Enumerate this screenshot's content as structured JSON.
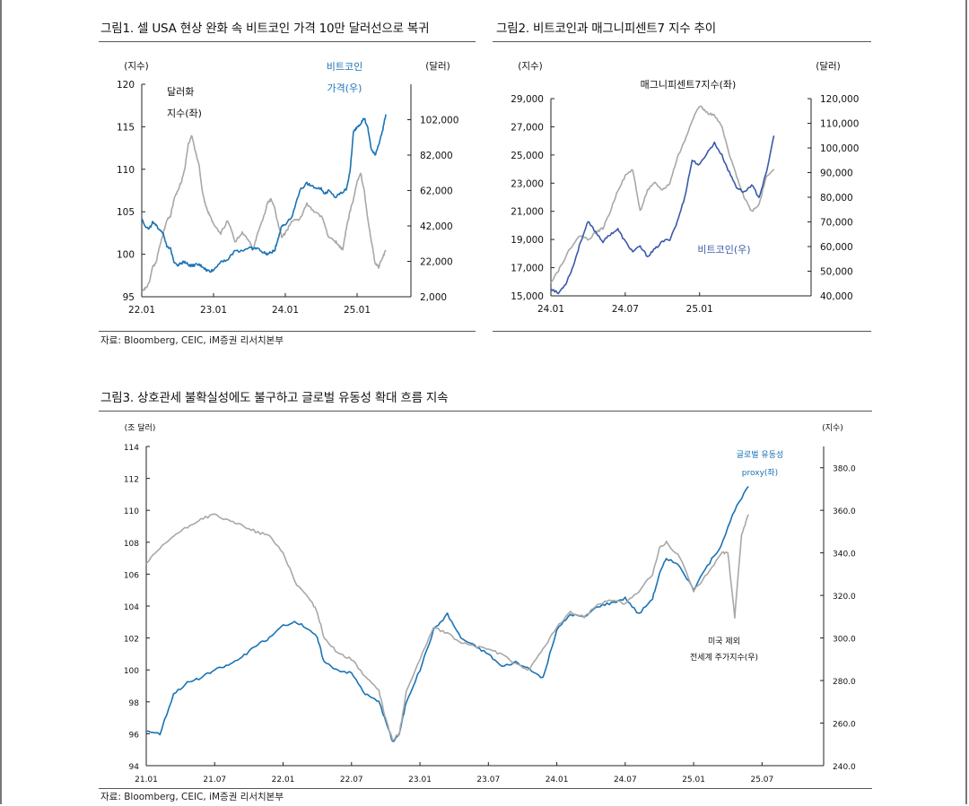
{
  "figures": {
    "fig1": {
      "title": "그림1.  셀 USA 현상 완화 속 비트코인 가격 10만 달러선으로 복귀",
      "source": "자료: Bloomberg, CEIC, iM증권 리서치본부"
    },
    "fig2": {
      "title": "그림2.  비트코인과 매그니피센트7 지수 추이"
    },
    "fig3": {
      "title": "그림3.  상호관세 불확실성에도 불구하고 글로벌 유동성 확대 흐름 지속",
      "source": "자료: Bloomberg, CEIC, iM증권 리서치본부"
    }
  },
  "chart_data": [
    {
      "id": "fig1",
      "type": "line",
      "left_axis": {
        "unit": "(지수)",
        "ylim": [
          95,
          120
        ],
        "ticks": [
          "95",
          "100",
          "105",
          "110",
          "115",
          "120"
        ]
      },
      "right_axis": {
        "unit": "(달러)",
        "ylim": [
          2000,
          122000
        ],
        "ticks": [
          "2,000",
          "22,000",
          "42,000",
          "62,000",
          "82,000",
          "102,000"
        ]
      },
      "x_ticks": [
        "22.01",
        "23.01",
        "24.01",
        "25.01"
      ],
      "annotations": [
        {
          "text": "달러화",
          "series": "dollar"
        },
        {
          "text": "지수(좌)",
          "series": "dollar"
        },
        {
          "text": "비트코인",
          "series": "btc"
        },
        {
          "text": "가격(우)",
          "series": "btc"
        }
      ],
      "series": [
        {
          "name": "달러화 지수(좌)",
          "axis": "left",
          "color": "#a8a8a8",
          "x": [
            2022.0,
            2022.05,
            2022.1,
            2022.15,
            2022.2,
            2022.25,
            2022.3,
            2022.35,
            2022.4,
            2022.45,
            2022.5,
            2022.55,
            2022.6,
            2022.65,
            2022.7,
            2022.75,
            2022.8,
            2022.85,
            2022.9,
            2022.95,
            2023.0,
            2023.1,
            2023.2,
            2023.3,
            2023.4,
            2023.5,
            2023.55,
            2023.6,
            2023.7,
            2023.75,
            2023.8,
            2023.85,
            2023.9,
            2023.95,
            2024.0,
            2024.1,
            2024.2,
            2024.3,
            2024.4,
            2024.5,
            2024.55,
            2024.6,
            2024.7,
            2024.75,
            2024.8,
            2024.85,
            2024.9,
            2024.95,
            2025.0,
            2025.05,
            2025.1,
            2025.15,
            2025.2,
            2025.25,
            2025.3,
            2025.35,
            2025.4
          ],
          "values": [
            95.5,
            96.0,
            96.5,
            98.5,
            99.0,
            101.0,
            102.5,
            104.0,
            104.5,
            106.5,
            107.5,
            108.5,
            110.0,
            113.0,
            114.0,
            112.0,
            110.5,
            107.0,
            105.5,
            104.5,
            103.5,
            102.5,
            104.0,
            101.5,
            102.5,
            101.5,
            100.5,
            102.0,
            104.5,
            106.0,
            106.5,
            105.5,
            103.5,
            102.0,
            102.5,
            104.0,
            104.0,
            106.0,
            105.0,
            104.5,
            103.5,
            102.0,
            101.5,
            101.0,
            100.5,
            103.0,
            105.0,
            106.5,
            108.5,
            109.5,
            107.5,
            104.0,
            101.5,
            99.0,
            98.5,
            99.5,
            100.5
          ]
        },
        {
          "name": "비트코인 가격(우)",
          "axis": "right",
          "color": "#1a73b5",
          "x": [
            2022.0,
            2022.05,
            2022.1,
            2022.15,
            2022.2,
            2022.25,
            2022.3,
            2022.35,
            2022.4,
            2022.45,
            2022.5,
            2022.55,
            2022.6,
            2022.65,
            2022.7,
            2022.75,
            2022.8,
            2022.85,
            2022.9,
            2022.95,
            2023.0,
            2023.1,
            2023.2,
            2023.3,
            2023.4,
            2023.5,
            2023.55,
            2023.6,
            2023.7,
            2023.75,
            2023.8,
            2023.85,
            2023.9,
            2023.95,
            2024.0,
            2024.1,
            2024.2,
            2024.3,
            2024.4,
            2024.5,
            2024.55,
            2024.6,
            2024.7,
            2024.75,
            2024.8,
            2024.85,
            2024.9,
            2024.95,
            2025.0,
            2025.05,
            2025.1,
            2025.15,
            2025.2,
            2025.25,
            2025.3,
            2025.35,
            2025.4
          ],
          "values": [
            46000,
            42000,
            40000,
            44000,
            42000,
            40000,
            38000,
            30000,
            29000,
            22000,
            20000,
            21000,
            22000,
            20000,
            19500,
            20000,
            20000,
            19000,
            17000,
            16500,
            17000,
            22000,
            23000,
            28000,
            28000,
            30000,
            29000,
            29500,
            27000,
            26000,
            27000,
            28000,
            35000,
            42000,
            43000,
            48000,
            62000,
            66000,
            64000,
            63000,
            60000,
            62000,
            58000,
            60000,
            61000,
            63000,
            72000,
            95000,
            98000,
            100000,
            103000,
            97000,
            85000,
            82000,
            88000,
            95000,
            105000
          ]
        }
      ]
    },
    {
      "id": "fig2",
      "type": "line",
      "left_axis": {
        "unit": "(지수)",
        "ylim": [
          15000,
          29000
        ],
        "ticks": [
          "15,000",
          "17,000",
          "19,000",
          "21,000",
          "23,000",
          "25,000",
          "27,000",
          "29,000"
        ]
      },
      "right_axis": {
        "unit": "(달러)",
        "ylim": [
          40000,
          120000
        ],
        "ticks": [
          "40,000",
          "50,000",
          "60,000",
          "70,000",
          "80,000",
          "90,000",
          "100,000",
          "110,000",
          "120,000"
        ]
      },
      "x_ticks": [
        "24.01",
        "24.07",
        "25.01"
      ],
      "annotations": [
        {
          "text": "매그니피센트7지수(좌)",
          "series": "mag7"
        },
        {
          "text": "비트코인(우)",
          "series": "btc"
        }
      ],
      "series": [
        {
          "name": "매그니피센트7지수(좌)",
          "axis": "left",
          "color": "#a8a8a8",
          "x": [
            2024.0,
            2024.05,
            2024.1,
            2024.15,
            2024.2,
            2024.25,
            2024.3,
            2024.35,
            2024.4,
            2024.45,
            2024.5,
            2024.55,
            2024.6,
            2024.65,
            2024.7,
            2024.75,
            2024.8,
            2024.85,
            2024.9,
            2024.95,
            2025.0,
            2025.05,
            2025.1,
            2025.15,
            2025.2,
            2025.25,
            2025.3,
            2025.35,
            2025.4,
            2025.45,
            2025.5
          ],
          "values": [
            16000,
            16800,
            17800,
            18700,
            19300,
            19000,
            19500,
            19800,
            21000,
            22500,
            23500,
            24000,
            21000,
            22500,
            23000,
            22500,
            23000,
            24800,
            26000,
            27500,
            28500,
            28000,
            27800,
            27000,
            25000,
            23500,
            22000,
            21000,
            21500,
            23500,
            24000
          ]
        },
        {
          "name": "비트코인(우)",
          "axis": "right",
          "color": "#3a5aa8",
          "x": [
            2024.0,
            2024.05,
            2024.1,
            2024.15,
            2024.2,
            2024.25,
            2024.3,
            2024.35,
            2024.4,
            2024.45,
            2024.5,
            2024.55,
            2024.6,
            2024.65,
            2024.7,
            2024.75,
            2024.8,
            2024.85,
            2024.9,
            2024.95,
            2025.0,
            2025.05,
            2025.1,
            2025.15,
            2025.2,
            2025.25,
            2025.3,
            2025.35,
            2025.4,
            2025.45,
            2025.5
          ],
          "values": [
            43000,
            41000,
            45000,
            52000,
            62000,
            70000,
            66000,
            62000,
            65000,
            67000,
            62000,
            58000,
            60000,
            56000,
            59000,
            62000,
            63000,
            70000,
            80000,
            95000,
            93000,
            98000,
            102000,
            97000,
            90000,
            84000,
            82000,
            85000,
            80000,
            90000,
            105000
          ]
        }
      ]
    },
    {
      "id": "fig3",
      "type": "line",
      "left_axis": {
        "unit": "(조 달러)",
        "ylim": [
          94,
          114
        ],
        "ticks": [
          "94",
          "96",
          "98",
          "100",
          "102",
          "104",
          "106",
          "108",
          "110",
          "112",
          "114"
        ]
      },
      "right_axis": {
        "unit": "(지수)",
        "ylim": [
          240,
          390
        ],
        "ticks": [
          "240.0",
          "260.0",
          "280.0",
          "300.0",
          "320.0",
          "340.0",
          "360.0",
          "380.0"
        ]
      },
      "x_ticks": [
        "21.01",
        "21.07",
        "22.01",
        "22.07",
        "23.01",
        "23.07",
        "24.01",
        "24.07",
        "25.01",
        "25.07"
      ],
      "annotations": [
        {
          "text": "글로벌 유동성",
          "series": "liq"
        },
        {
          "text": "proxy(좌)",
          "series": "liq"
        },
        {
          "text": "미국 제외",
          "series": "eq"
        },
        {
          "text": "전세계 주가지수(우)",
          "series": "eq"
        }
      ],
      "series": [
        {
          "name": "글로벌 유동성 proxy(좌)",
          "axis": "left",
          "color": "#1a73b5",
          "x": [
            2021.0,
            2021.1,
            2021.2,
            2021.3,
            2021.4,
            2021.5,
            2021.6,
            2021.7,
            2021.8,
            2021.9,
            2022.0,
            2022.1,
            2022.2,
            2022.25,
            2022.3,
            2022.4,
            2022.5,
            2022.6,
            2022.7,
            2022.75,
            2022.8,
            2022.85,
            2022.9,
            2023.0,
            2023.1,
            2023.2,
            2023.3,
            2023.4,
            2023.5,
            2023.6,
            2023.7,
            2023.8,
            2023.9,
            2024.0,
            2024.1,
            2024.2,
            2024.3,
            2024.4,
            2024.5,
            2024.6,
            2024.7,
            2024.75,
            2024.8,
            2024.9,
            2025.0,
            2025.1,
            2025.2,
            2025.3,
            2025.4
          ],
          "values": [
            96.2,
            96.0,
            98.5,
            99.2,
            99.5,
            100.0,
            100.3,
            100.8,
            101.5,
            102.0,
            102.8,
            103.0,
            102.5,
            102.0,
            100.5,
            100.0,
            99.8,
            98.5,
            98.0,
            96.8,
            95.5,
            96.0,
            98.0,
            100.0,
            102.5,
            103.5,
            102.0,
            101.5,
            101.0,
            100.2,
            100.5,
            100.0,
            99.5,
            102.5,
            103.5,
            103.3,
            104.0,
            104.2,
            104.5,
            103.5,
            104.5,
            106.0,
            107.0,
            106.5,
            105.0,
            106.5,
            107.8,
            110.0,
            111.5
          ]
        },
        {
          "name": "미국 제외 전세계 주가지수(우)",
          "axis": "right",
          "color": "#a8a8a8",
          "x": [
            2021.0,
            2021.1,
            2021.2,
            2021.3,
            2021.4,
            2021.5,
            2021.6,
            2021.7,
            2021.8,
            2021.9,
            2022.0,
            2022.1,
            2022.2,
            2022.25,
            2022.3,
            2022.4,
            2022.5,
            2022.6,
            2022.7,
            2022.75,
            2022.8,
            2022.85,
            2022.9,
            2023.0,
            2023.1,
            2023.2,
            2023.3,
            2023.4,
            2023.5,
            2023.6,
            2023.7,
            2023.8,
            2023.9,
            2024.0,
            2024.1,
            2024.2,
            2024.3,
            2024.4,
            2024.5,
            2024.6,
            2024.7,
            2024.75,
            2024.8,
            2024.9,
            2025.0,
            2025.1,
            2025.2,
            2025.25,
            2025.3,
            2025.35,
            2025.4
          ],
          "values": [
            335,
            342,
            348,
            352,
            356,
            358,
            355,
            353,
            350,
            348,
            340,
            325,
            318,
            312,
            300,
            293,
            290,
            282,
            275,
            262,
            252,
            255,
            275,
            290,
            305,
            302,
            298,
            296,
            295,
            292,
            288,
            285,
            295,
            305,
            312,
            310,
            316,
            318,
            316,
            322,
            330,
            342,
            345,
            338,
            322,
            330,
            340,
            340,
            310,
            348,
            358
          ]
        }
      ]
    }
  ]
}
